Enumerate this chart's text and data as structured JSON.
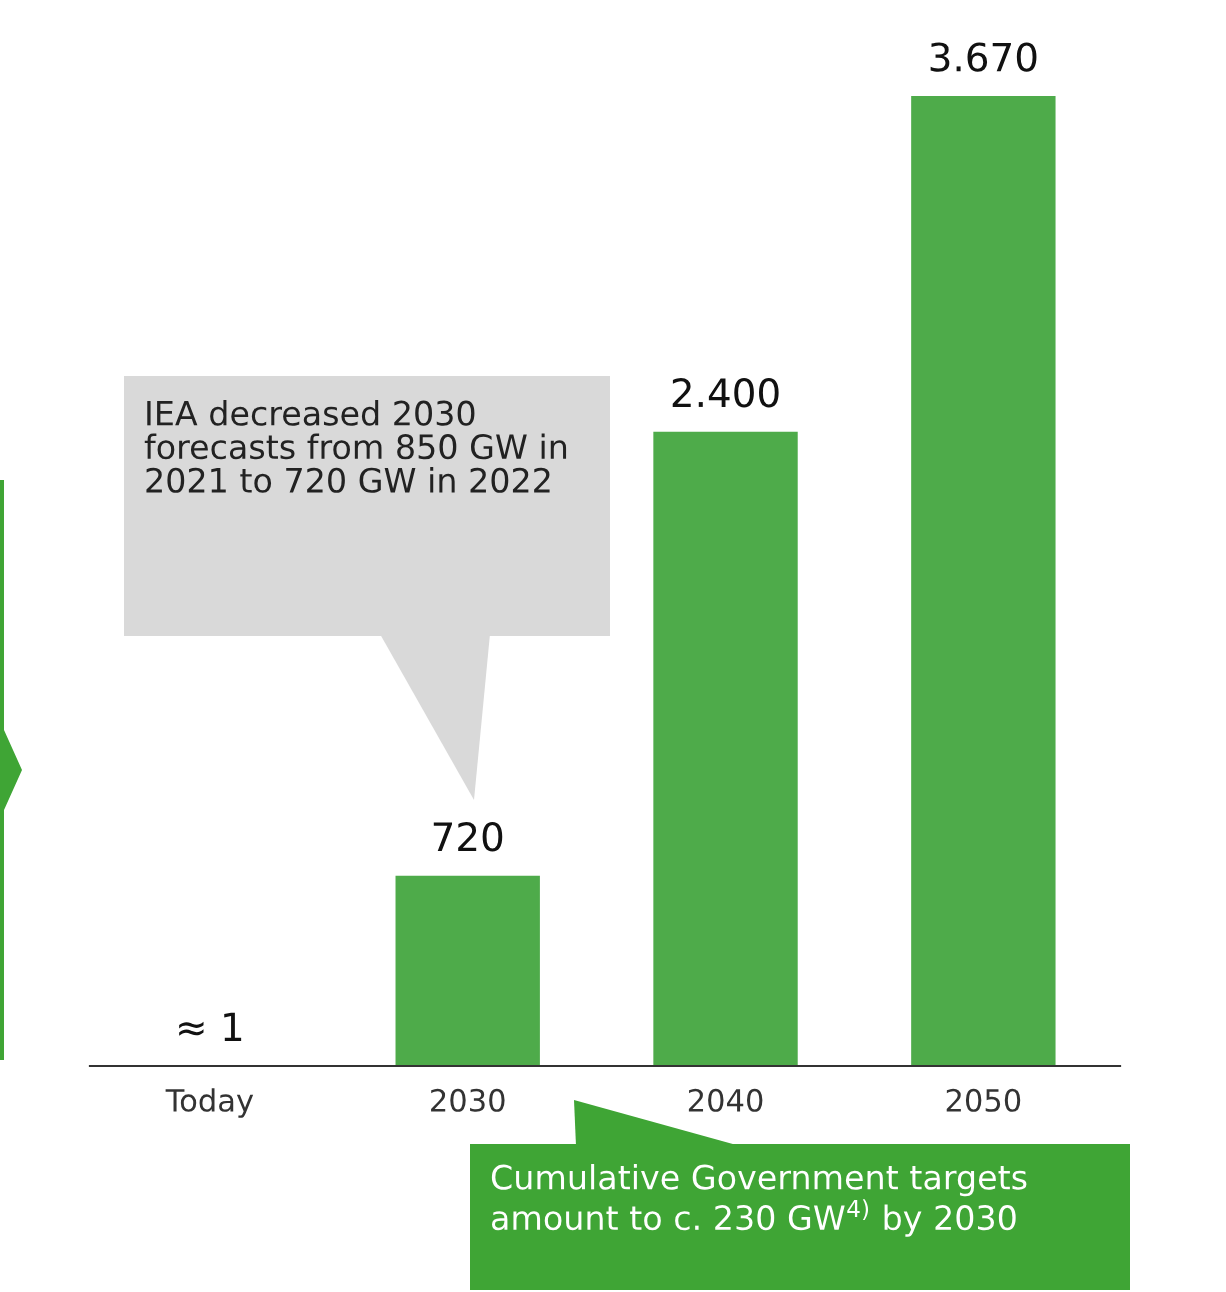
{
  "chart_data": {
    "type": "bar",
    "categories": [
      "Today",
      "2030",
      "2040",
      "2050"
    ],
    "values": [
      1,
      720,
      2400,
      3670
    ],
    "value_labels": [
      "≈ 1",
      "720",
      "2.400",
      "3.670"
    ],
    "color": "#4eab4a",
    "grid": false,
    "legend": false,
    "annotations": [
      "IEA decreased 2030 forecasts from 850 GW in 2021 to 720 GW in 2022",
      "Cumulative Government targets amount to c. 230 GW$^{4)}$ by 2030"
    ]
  }
}
